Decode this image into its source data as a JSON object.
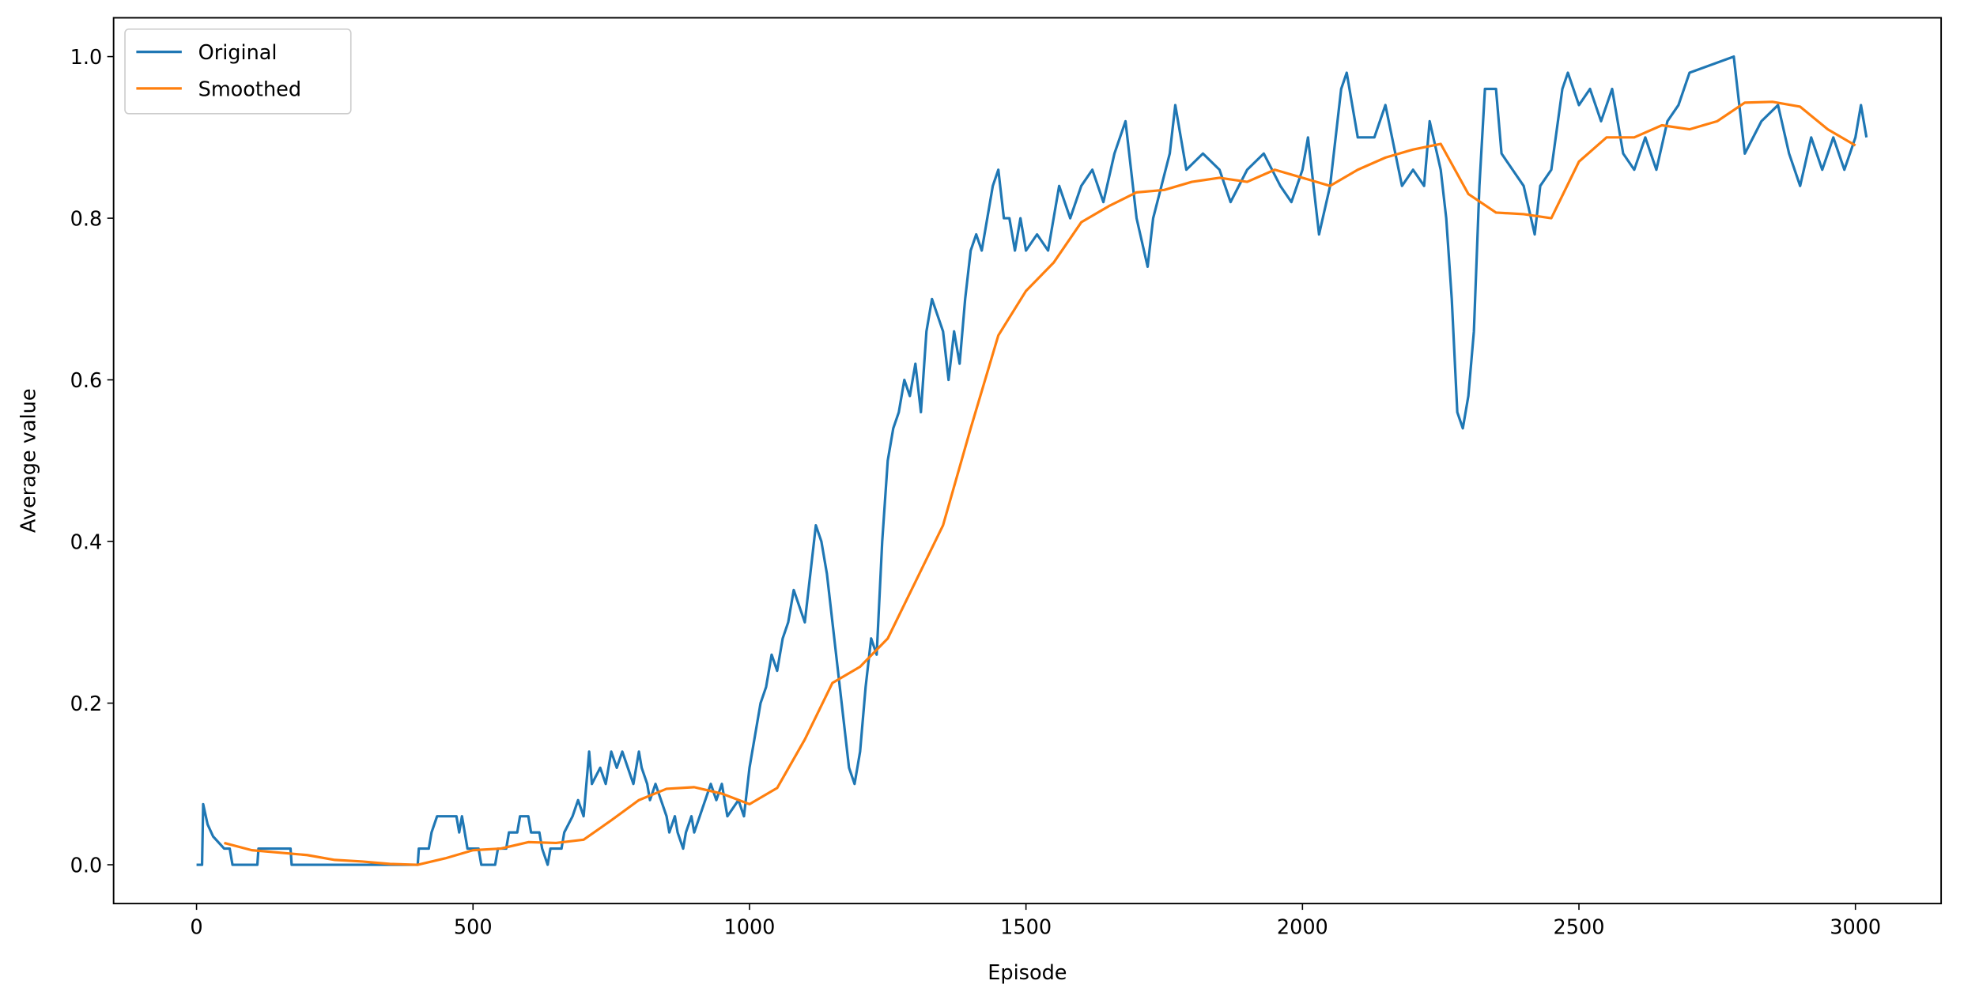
{
  "chart_data": {
    "type": "line",
    "xlabel": "Episode",
    "ylabel": "Average value",
    "xlim": [
      -150,
      3155
    ],
    "ylim": [
      -0.048,
      1.048
    ],
    "xticks": [
      0,
      500,
      1000,
      1500,
      2000,
      2500,
      3000
    ],
    "yticks": [
      {
        "value": 0,
        "label": "0.0"
      },
      {
        "value": 0.2,
        "label": "0.2"
      },
      {
        "value": 0.4,
        "label": "0.4"
      },
      {
        "value": 0.6,
        "label": "0.6"
      },
      {
        "value": 0.8,
        "label": "0.8"
      },
      {
        "value": 1,
        "label": "1.0"
      }
    ],
    "legend": "upper left",
    "grid": false,
    "series": [
      {
        "name": "Original",
        "color": "#1f77b4",
        "x": [
          0,
          10,
          12,
          20,
          30,
          50,
          60,
          65,
          110,
          112,
          170,
          172,
          400,
          402,
          420,
          425,
          435,
          470,
          475,
          480,
          485,
          490,
          510,
          515,
          540,
          545,
          560,
          565,
          580,
          585,
          600,
          605,
          620,
          625,
          635,
          640,
          660,
          665,
          680,
          690,
          700,
          705,
          710,
          715,
          730,
          740,
          750,
          760,
          770,
          780,
          790,
          800,
          805,
          815,
          820,
          830,
          840,
          850,
          855,
          865,
          870,
          880,
          885,
          895,
          900,
          910,
          920,
          930,
          940,
          950,
          960,
          980,
          990,
          1000,
          1010,
          1020,
          1030,
          1040,
          1050,
          1060,
          1070,
          1080,
          1090,
          1100,
          1110,
          1120,
          1130,
          1140,
          1150,
          1160,
          1170,
          1180,
          1190,
          1200,
          1210,
          1220,
          1230,
          1240,
          1250,
          1260,
          1270,
          1280,
          1290,
          1300,
          1310,
          1320,
          1330,
          1340,
          1350,
          1360,
          1370,
          1380,
          1390,
          1400,
          1410,
          1420,
          1430,
          1440,
          1450,
          1460,
          1470,
          1480,
          1490,
          1500,
          1520,
          1540,
          1560,
          1580,
          1600,
          1620,
          1640,
          1660,
          1680,
          1700,
          1720,
          1730,
          1760,
          1770,
          1790,
          1820,
          1850,
          1870,
          1900,
          1930,
          1960,
          1980,
          2000,
          2010,
          2030,
          2050,
          2070,
          2080,
          2100,
          2130,
          2150,
          2180,
          2200,
          2220,
          2230,
          2250,
          2260,
          2270,
          2280,
          2290,
          2300,
          2310,
          2320,
          2330,
          2350,
          2360,
          2380,
          2400,
          2420,
          2430,
          2450,
          2470,
          2480,
          2500,
          2520,
          2540,
          2560,
          2580,
          2600,
          2620,
          2640,
          2660,
          2680,
          2700,
          2780,
          2790,
          2800,
          2830,
          2860,
          2880,
          2900,
          2920,
          2940,
          2960,
          2980,
          3000,
          3010,
          3020
        ],
        "values": [
          0,
          0,
          0.075,
          0.05,
          0.035,
          0.02,
          0.02,
          0,
          0,
          0.02,
          0.02,
          0,
          0,
          0.02,
          0.02,
          0.04,
          0.06,
          0.06,
          0.04,
          0.06,
          0.04,
          0.02,
          0.02,
          0,
          0,
          0.02,
          0.02,
          0.04,
          0.04,
          0.06,
          0.06,
          0.04,
          0.04,
          0.02,
          0,
          0.02,
          0.02,
          0.04,
          0.06,
          0.08,
          0.06,
          0.1,
          0.14,
          0.1,
          0.12,
          0.1,
          0.14,
          0.12,
          0.14,
          0.12,
          0.1,
          0.14,
          0.12,
          0.1,
          0.08,
          0.1,
          0.08,
          0.06,
          0.04,
          0.06,
          0.04,
          0.02,
          0.04,
          0.06,
          0.04,
          0.06,
          0.08,
          0.1,
          0.08,
          0.1,
          0.06,
          0.08,
          0.06,
          0.12,
          0.16,
          0.2,
          0.22,
          0.26,
          0.24,
          0.28,
          0.3,
          0.34,
          0.32,
          0.3,
          0.36,
          0.42,
          0.4,
          0.36,
          0.3,
          0.24,
          0.18,
          0.12,
          0.1,
          0.14,
          0.22,
          0.28,
          0.26,
          0.4,
          0.5,
          0.54,
          0.56,
          0.6,
          0.58,
          0.62,
          0.56,
          0.66,
          0.7,
          0.68,
          0.66,
          0.6,
          0.66,
          0.62,
          0.7,
          0.76,
          0.78,
          0.76,
          0.8,
          0.84,
          0.86,
          0.8,
          0.8,
          0.76,
          0.8,
          0.76,
          0.78,
          0.76,
          0.84,
          0.8,
          0.84,
          0.86,
          0.82,
          0.88,
          0.92,
          0.8,
          0.74,
          0.8,
          0.88,
          0.94,
          0.86,
          0.88,
          0.86,
          0.82,
          0.86,
          0.88,
          0.84,
          0.82,
          0.86,
          0.9,
          0.78,
          0.84,
          0.96,
          0.98,
          0.9,
          0.9,
          0.94,
          0.84,
          0.86,
          0.84,
          0.92,
          0.86,
          0.8,
          0.7,
          0.56,
          0.54,
          0.58,
          0.66,
          0.84,
          0.96,
          0.96,
          0.88,
          0.86,
          0.84,
          0.78,
          0.84,
          0.86,
          0.96,
          0.98,
          0.94,
          0.96,
          0.92,
          0.96,
          0.88,
          0.86,
          0.9,
          0.86,
          0.92,
          0.94,
          0.98,
          1.0,
          0.94,
          0.88,
          0.92,
          0.94,
          0.88,
          0.84,
          0.9,
          0.86,
          0.9,
          0.86,
          0.9,
          0.94,
          0.9
        ]
      },
      {
        "name": "Smoothed",
        "color": "#ff7f0e",
        "x": [
          50,
          100,
          150,
          200,
          250,
          300,
          350,
          400,
          450,
          500,
          550,
          600,
          650,
          700,
          750,
          800,
          850,
          900,
          950,
          1000,
          1050,
          1100,
          1150,
          1200,
          1250,
          1300,
          1350,
          1400,
          1450,
          1500,
          1550,
          1600,
          1650,
          1700,
          1750,
          1800,
          1850,
          1900,
          1950,
          2000,
          2050,
          2100,
          2150,
          2200,
          2250,
          2300,
          2350,
          2400,
          2450,
          2500,
          2550,
          2600,
          2650,
          2700,
          2750,
          2800,
          2850,
          2900,
          2950,
          3000
        ],
        "values": [
          0.027,
          0.018,
          0.015,
          0.012,
          0.006,
          0.004,
          0.001,
          0,
          0.008,
          0.018,
          0.02,
          0.028,
          0.027,
          0.031,
          0.055,
          0.08,
          0.094,
          0.096,
          0.088,
          0.075,
          0.095,
          0.155,
          0.225,
          0.245,
          0.28,
          0.35,
          0.42,
          0.54,
          0.655,
          0.71,
          0.745,
          0.795,
          0.815,
          0.832,
          0.835,
          0.845,
          0.85,
          0.845,
          0.86,
          0.85,
          0.84,
          0.86,
          0.875,
          0.885,
          0.892,
          0.83,
          0.807,
          0.805,
          0.8,
          0.87,
          0.9,
          0.9,
          0.915,
          0.91,
          0.92,
          0.943,
          0.944,
          0.938,
          0.91,
          0.89
        ]
      }
    ]
  }
}
